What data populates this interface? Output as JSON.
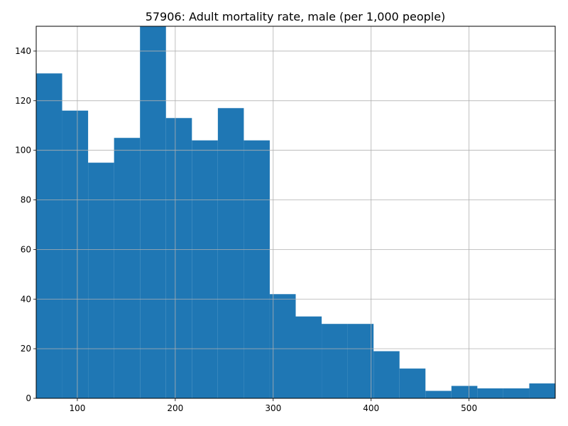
{
  "chart_data": {
    "type": "bar",
    "title": "57906: Adult mortality rate, male (per 1,000 people)",
    "xlabel": "",
    "ylabel": "",
    "xlim": [
      58,
      588
    ],
    "ylim": [
      0,
      150
    ],
    "x_ticks": [
      100,
      200,
      300,
      400,
      500
    ],
    "y_ticks": [
      0,
      20,
      40,
      60,
      80,
      100,
      120,
      140
    ],
    "bin_edges": [
      58,
      84.5,
      111,
      137.5,
      164,
      190.5,
      217,
      243.5,
      270,
      296.5,
      323,
      349.5,
      376,
      402.5,
      429,
      455.5,
      482,
      508.5,
      535,
      561.5,
      588
    ],
    "values": [
      131,
      116,
      95,
      105,
      150,
      113,
      104,
      117,
      104,
      42,
      33,
      30,
      30,
      19,
      12,
      3,
      5,
      4,
      4,
      6
    ],
    "bar_color": "#1f77b4",
    "grid": true
  }
}
